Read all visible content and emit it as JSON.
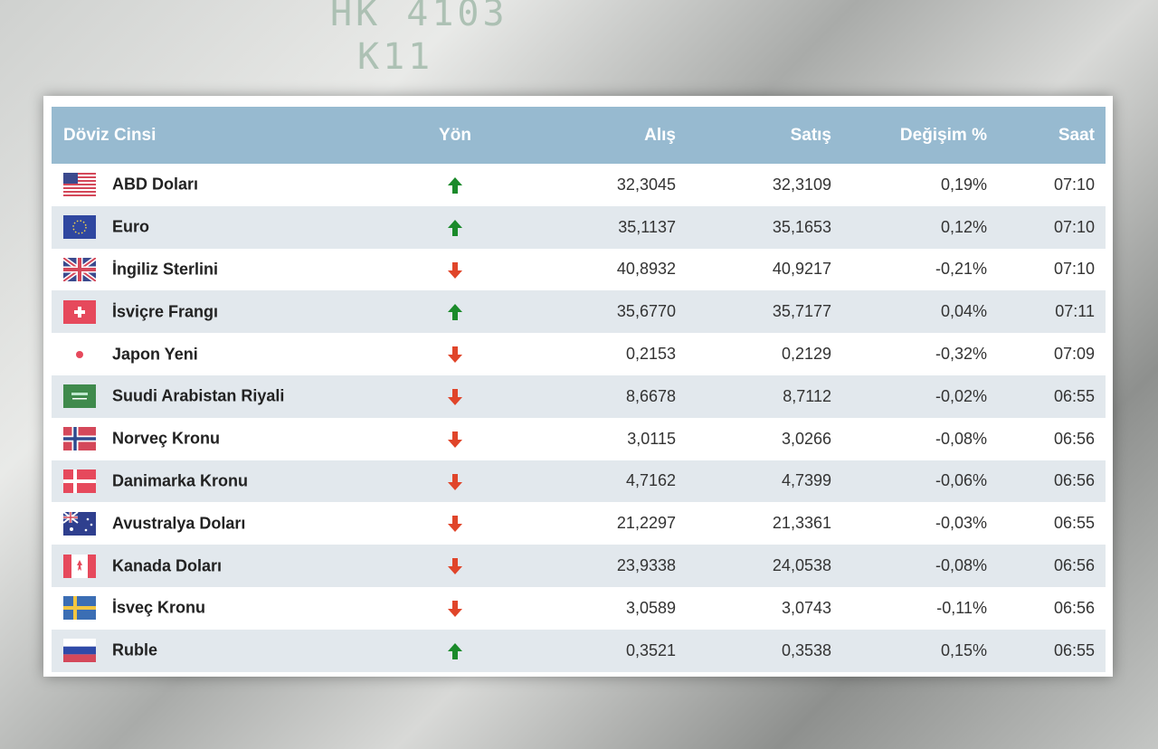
{
  "table": {
    "headers": {
      "currency": "Döviz Cinsi",
      "direction": "Yön",
      "buy": "Alış",
      "sell": "Satış",
      "change": "Değişim %",
      "time": "Saat"
    },
    "colors": {
      "header_bg": "#97bad0",
      "up": "#1a8a2a",
      "down": "#e0452a",
      "row_alt": "#e2e8ed"
    },
    "rows": [
      {
        "flag": "us-flag",
        "name": "ABD Doları",
        "direction": "up",
        "buy": "32,3045",
        "sell": "32,3109",
        "change": "0,19%",
        "time": "07:10"
      },
      {
        "flag": "eu-flag",
        "name": "Euro",
        "direction": "up",
        "buy": "35,1137",
        "sell": "35,1653",
        "change": "0,12%",
        "time": "07:10"
      },
      {
        "flag": "gb-flag",
        "name": "İngiliz Sterlini",
        "direction": "down",
        "buy": "40,8932",
        "sell": "40,9217",
        "change": "-0,21%",
        "time": "07:10"
      },
      {
        "flag": "ch-flag",
        "name": "İsviçre Frangı",
        "direction": "up",
        "buy": "35,6770",
        "sell": "35,7177",
        "change": "0,04%",
        "time": "07:11"
      },
      {
        "flag": "jp-flag",
        "name": "Japon Yeni",
        "direction": "down",
        "buy": "0,2153",
        "sell": "0,2129",
        "change": "-0,32%",
        "time": "07:09"
      },
      {
        "flag": "sa-flag",
        "name": "Suudi Arabistan Riyali",
        "direction": "down",
        "buy": "8,6678",
        "sell": "8,7112",
        "change": "-0,02%",
        "time": "06:55"
      },
      {
        "flag": "no-flag",
        "name": "Norveç Kronu",
        "direction": "down",
        "buy": "3,0115",
        "sell": "3,0266",
        "change": "-0,08%",
        "time": "06:56"
      },
      {
        "flag": "dk-flag",
        "name": "Danimarka Kronu",
        "direction": "down",
        "buy": "4,7162",
        "sell": "4,7399",
        "change": "-0,06%",
        "time": "06:56"
      },
      {
        "flag": "au-flag",
        "name": "Avustralya Doları",
        "direction": "down",
        "buy": "21,2297",
        "sell": "21,3361",
        "change": "-0,03%",
        "time": "06:55"
      },
      {
        "flag": "ca-flag",
        "name": "Kanada Doları",
        "direction": "down",
        "buy": "23,9338",
        "sell": "24,0538",
        "change": "-0,08%",
        "time": "06:56"
      },
      {
        "flag": "se-flag",
        "name": "İsveç Kronu",
        "direction": "down",
        "buy": "3,0589",
        "sell": "3,0743",
        "change": "-0,11%",
        "time": "06:56"
      },
      {
        "flag": "ru-flag",
        "name": "Ruble",
        "direction": "up",
        "buy": "0,3521",
        "sell": "0,3538",
        "change": "0,15%",
        "time": "06:55"
      }
    ]
  }
}
